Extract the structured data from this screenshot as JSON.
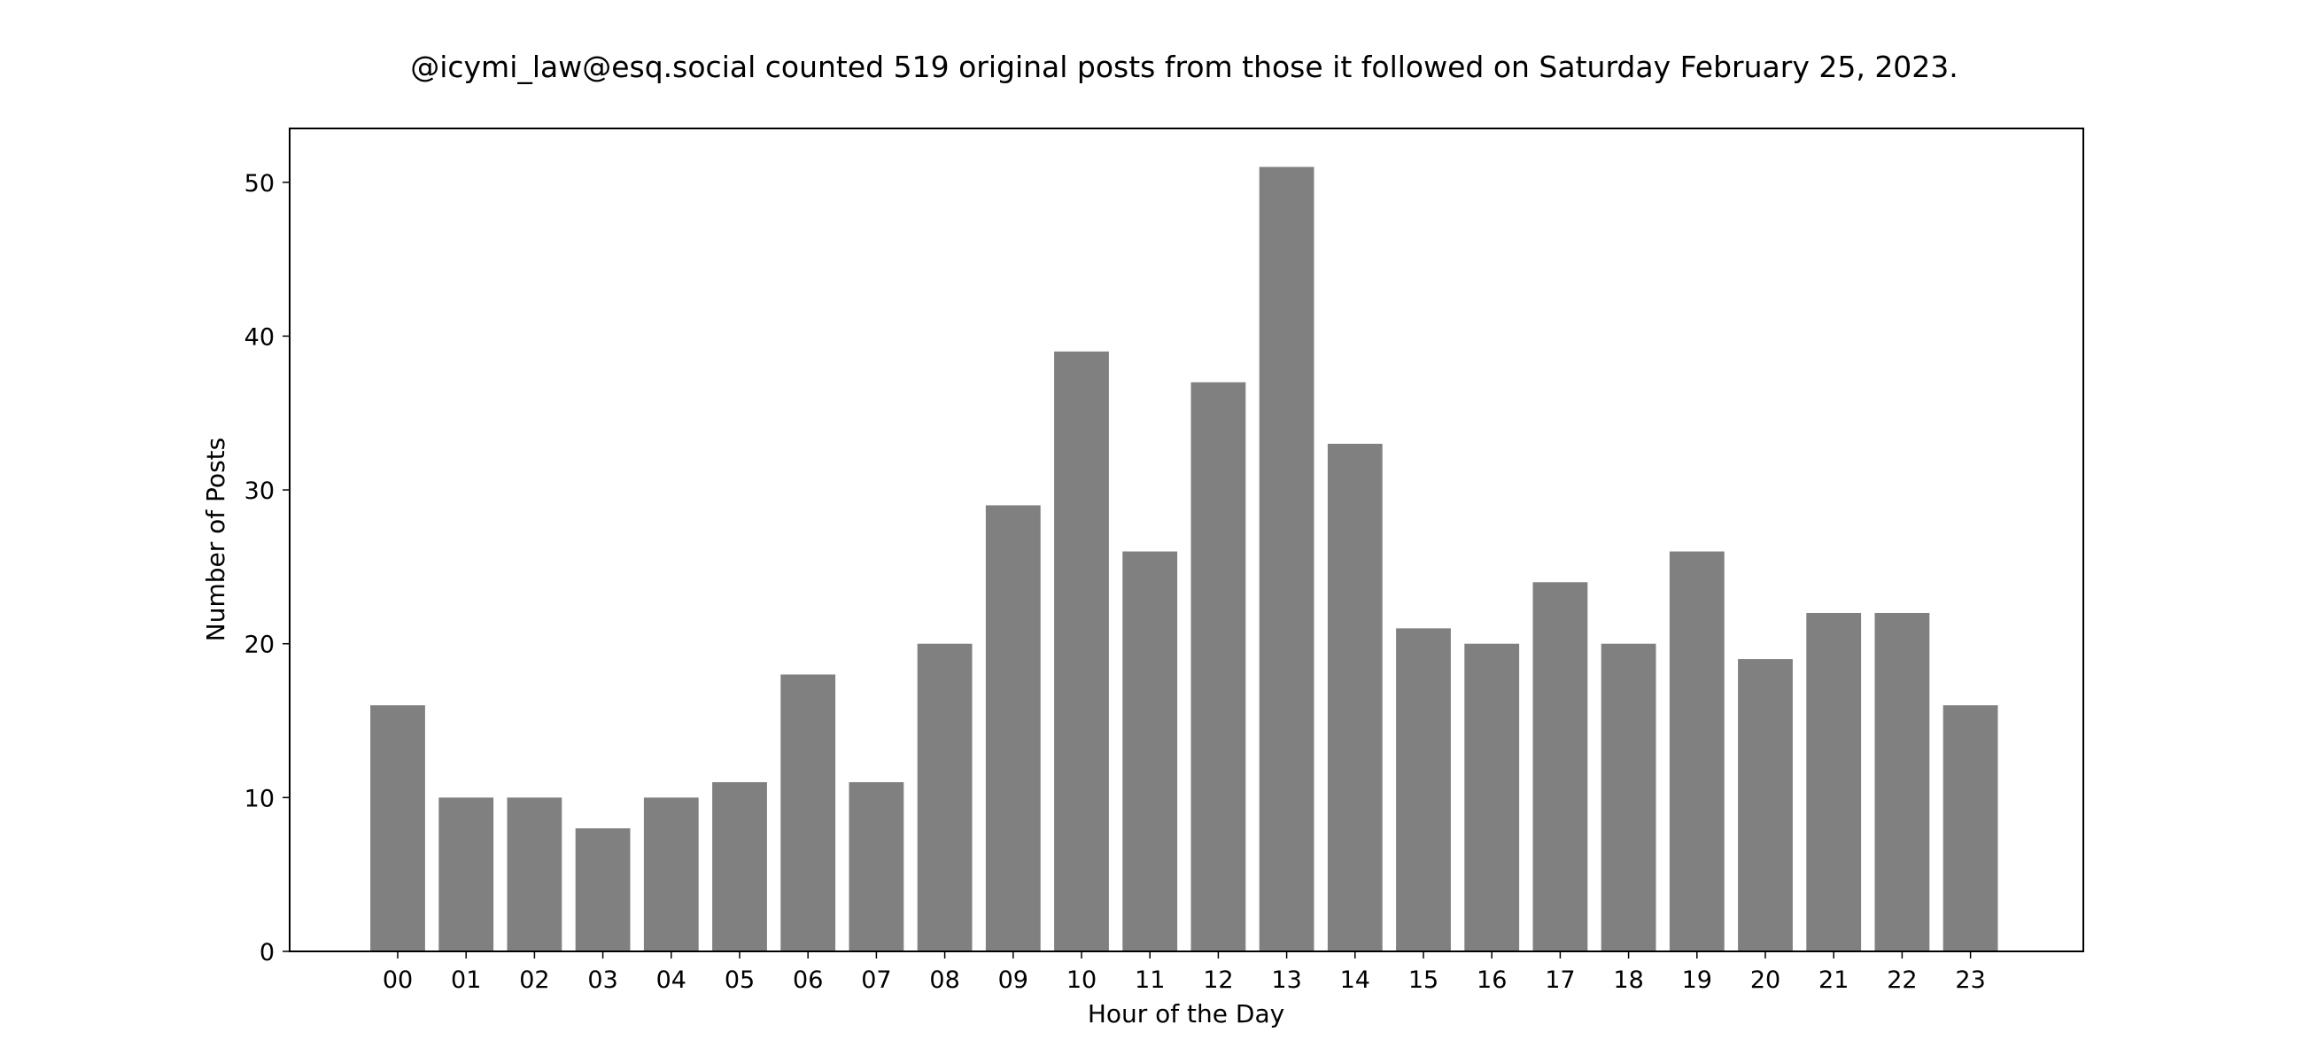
{
  "chart_data": {
    "type": "bar",
    "title": "@icymi_law@esq.social counted 519 original posts from those it followed on Saturday February 25, 2023.",
    "xlabel": "Hour of the Day",
    "ylabel": "Number of Posts",
    "categories": [
      "00",
      "01",
      "02",
      "03",
      "04",
      "05",
      "06",
      "07",
      "08",
      "09",
      "10",
      "11",
      "12",
      "13",
      "14",
      "15",
      "16",
      "17",
      "18",
      "19",
      "20",
      "21",
      "22",
      "23"
    ],
    "values": [
      16,
      10,
      10,
      8,
      10,
      11,
      18,
      11,
      20,
      29,
      39,
      26,
      37,
      51,
      33,
      21,
      20,
      24,
      20,
      26,
      19,
      22,
      22,
      16
    ],
    "ylim": [
      0,
      53.5
    ],
    "yticks": [
      0,
      10,
      20,
      30,
      40,
      50
    ],
    "grid": false,
    "legend": "none",
    "bar_color": "#808080",
    "frame_color": "#000000"
  }
}
